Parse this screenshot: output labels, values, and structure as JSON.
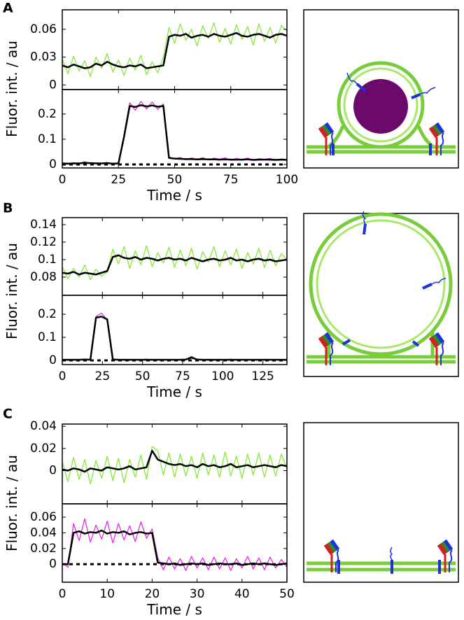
{
  "chart_data": [
    {
      "type": "line",
      "label": "A",
      "ylabel": "Fluor. int. / au",
      "xlabel": "Time / s",
      "xlim": [
        0,
        100
      ],
      "xticks": [
        0,
        25,
        50,
        75,
        100
      ],
      "x": [
        0,
        2.5,
        5,
        7.5,
        10,
        12.5,
        15,
        17.5,
        20,
        22.5,
        25,
        27.5,
        30,
        32.5,
        35,
        37.5,
        40,
        42.5,
        45,
        47.5,
        50,
        52.5,
        55,
        57.5,
        60,
        62.5,
        65,
        67.5,
        70,
        72.5,
        75,
        77.5,
        80,
        82.5,
        85,
        87.5,
        90,
        92.5,
        95,
        97.5,
        100
      ],
      "subplots": [
        {
          "ylim": [
            -0.005,
            0.081
          ],
          "yticks": [
            0,
            0.03,
            0.06
          ],
          "series": [
            {
              "color": "#80e632",
              "values": [
                0.028,
                0.012,
                0.031,
                0.015,
                0.026,
                0.009,
                0.03,
                0.018,
                0.034,
                0.014,
                0.027,
                0.01,
                0.029,
                0.016,
                0.032,
                0.011,
                0.025,
                0.013,
                0.03,
                0.062,
                0.045,
                0.066,
                0.048,
                0.06,
                0.042,
                0.064,
                0.05,
                0.067,
                0.046,
                0.061,
                0.044,
                0.065,
                0.049,
                0.063,
                0.043,
                0.066,
                0.047,
                0.062,
                0.045,
                0.064,
                0.058
              ]
            },
            {
              "color": "#000000",
              "values": [
                0.021,
                0.019,
                0.022,
                0.02,
                0.018,
                0.019,
                0.023,
                0.021,
                0.025,
                0.022,
                0.02,
                0.019,
                0.021,
                0.02,
                0.022,
                0.018,
                0.019,
                0.02,
                0.021,
                0.052,
                0.054,
                0.053,
                0.055,
                0.051,
                0.053,
                0.054,
                0.052,
                0.055,
                0.053,
                0.052,
                0.054,
                0.056,
                0.053,
                0.052,
                0.054,
                0.055,
                0.053,
                0.051,
                0.054,
                0.055,
                0.053
              ]
            }
          ]
        },
        {
          "ylim": [
            -0.014,
            0.297
          ],
          "yticks": [
            0,
            0.1,
            0.2
          ],
          "reference_line": 0,
          "series": [
            {
              "color": "#e020e0",
              "values": [
                0.006,
                0.001,
                0.007,
                0.003,
                0.011,
                0.002,
                0.006,
                0.004,
                0.008,
                0.001,
                0.005,
                0.12,
                0.245,
                0.215,
                0.25,
                0.22,
                0.248,
                0.218,
                0.24,
                0.03,
                0.022,
                0.028,
                0.018,
                0.026,
                0.02,
                0.027,
                0.017,
                0.025,
                0.021,
                0.026,
                0.016,
                0.024,
                0.019,
                0.025,
                0.017,
                0.023,
                0.02,
                0.024,
                0.016,
                0.022,
                0.019
              ]
            },
            {
              "color": "#000000",
              "values": [
                0.004,
                0.003,
                0.004,
                0.004,
                0.006,
                0.005,
                0.004,
                0.004,
                0.005,
                0.003,
                0.004,
                0.11,
                0.232,
                0.228,
                0.235,
                0.23,
                0.234,
                0.229,
                0.232,
                0.026,
                0.023,
                0.022,
                0.021,
                0.021,
                0.02,
                0.021,
                0.02,
                0.02,
                0.019,
                0.02,
                0.019,
                0.019,
                0.019,
                0.02,
                0.018,
                0.019,
                0.019,
                0.019,
                0.018,
                0.019,
                0.018
              ]
            }
          ]
        }
      ]
    },
    {
      "type": "line",
      "label": "B",
      "ylabel": "Fluor. int. / au",
      "xlabel": "Time / s",
      "xlim": [
        0,
        140
      ],
      "xticks": [
        0,
        25,
        50,
        75,
        100,
        125
      ],
      "x": [
        0,
        3.5,
        7,
        10.5,
        14,
        17.5,
        21,
        24.5,
        28,
        31.5,
        35,
        38.5,
        42,
        45.5,
        49,
        52.5,
        56,
        59.5,
        63,
        66.5,
        70,
        73.5,
        77,
        80.5,
        84,
        87.5,
        91,
        94.5,
        98,
        101.5,
        105,
        108.5,
        112,
        115.5,
        119,
        122.5,
        126,
        129.5,
        133,
        136.5,
        140
      ],
      "subplots": [
        {
          "ylim": [
            0.0592,
            0.148
          ],
          "yticks": [
            0.08,
            0.1,
            0.12,
            0.14
          ],
          "series": [
            {
              "color": "#80e632",
              "values": [
                0.092,
                0.078,
                0.09,
                0.08,
                0.094,
                0.077,
                0.089,
                0.081,
                0.086,
                0.112,
                0.095,
                0.115,
                0.09,
                0.11,
                0.094,
                0.116,
                0.092,
                0.108,
                0.096,
                0.114,
                0.091,
                0.111,
                0.093,
                0.113,
                0.089,
                0.109,
                0.097,
                0.115,
                0.092,
                0.11,
                0.094,
                0.112,
                0.09,
                0.108,
                0.095,
                0.113,
                0.091,
                0.111,
                0.093,
                0.107,
                0.1
              ]
            },
            {
              "color": "#000000",
              "values": [
                0.085,
                0.084,
                0.086,
                0.083,
                0.085,
                0.084,
                0.083,
                0.085,
                0.087,
                0.103,
                0.105,
                0.102,
                0.101,
                0.103,
                0.1,
                0.102,
                0.101,
                0.099,
                0.101,
                0.102,
                0.1,
                0.101,
                0.099,
                0.102,
                0.1,
                0.098,
                0.1,
                0.101,
                0.099,
                0.1,
                0.102,
                0.099,
                0.1,
                0.098,
                0.1,
                0.101,
                0.099,
                0.1,
                0.098,
                0.099,
                0.1
              ]
            }
          ]
        },
        {
          "ylim": [
            -0.018,
            0.282
          ],
          "yticks": [
            0,
            0.1,
            0.2
          ],
          "reference_line": 0,
          "series": [
            {
              "color": "#e020e0",
              "values": [
                0.004,
                0.001,
                0.005,
                0.002,
                0.006,
                0.003,
                0.19,
                0.205,
                0.175,
                0.006,
                0.002,
                0.005,
                0.001,
                0.004,
                0.003,
                0.006,
                0.002,
                0.005,
                0.001,
                0.004,
                0.003,
                0.005,
                0.002,
                0.018,
                0.004,
                0.002,
                0.005,
                0.001,
                0.004,
                0.003,
                0.006,
                0.002,
                0.005,
                0.001,
                0.004,
                0.003,
                0.005,
                0.002,
                0.004,
                0.001,
                0.003
              ]
            },
            {
              "color": "#000000",
              "values": [
                0.003,
                0.003,
                0.003,
                0.003,
                0.004,
                0.003,
                0.185,
                0.19,
                0.178,
                0.004,
                0.003,
                0.003,
                0.003,
                0.003,
                0.003,
                0.003,
                0.003,
                0.003,
                0.003,
                0.003,
                0.003,
                0.003,
                0.004,
                0.012,
                0.004,
                0.003,
                0.003,
                0.003,
                0.003,
                0.003,
                0.003,
                0.003,
                0.003,
                0.003,
                0.003,
                0.003,
                0.003,
                0.003,
                0.003,
                0.003,
                0.003
              ]
            }
          ]
        }
      ]
    },
    {
      "type": "line",
      "label": "C",
      "ylabel": "Fluor. int. / au",
      "xlabel": "Time / s",
      "xlim": [
        0,
        50
      ],
      "xticks": [
        0,
        10,
        20,
        30,
        40,
        50
      ],
      "x": [
        0,
        1.25,
        2.5,
        3.75,
        5,
        6.25,
        7.5,
        8.75,
        10,
        11.25,
        12.5,
        13.75,
        15,
        16.25,
        17.5,
        18.75,
        20,
        21.25,
        22.5,
        23.75,
        25,
        26.25,
        27.5,
        28.75,
        30,
        31.25,
        32.5,
        33.75,
        35,
        36.25,
        37.5,
        38.75,
        40,
        41.25,
        42.5,
        43.75,
        45,
        46.25,
        47.5,
        48.75,
        50
      ],
      "subplots": [
        {
          "ylim": [
            -0.03,
            0.042
          ],
          "yticks": [
            0,
            0.02,
            0.04
          ],
          "series": [
            {
              "color": "#80e632",
              "values": [
                0.008,
                -0.01,
                0.012,
                -0.008,
                0.01,
                -0.012,
                0.009,
                -0.007,
                0.013,
                -0.009,
                0.011,
                -0.011,
                0.01,
                -0.006,
                0.014,
                -0.008,
                0.022,
                0.018,
                -0.004,
                0.016,
                -0.006,
                0.015,
                -0.005,
                0.013,
                -0.007,
                0.016,
                -0.004,
                0.014,
                -0.006,
                0.017,
                -0.005,
                0.013,
                -0.007,
                0.015,
                -0.004,
                0.016,
                -0.006,
                0.014,
                -0.005,
                0.015,
                0.002
              ]
            },
            {
              "color": "#000000",
              "values": [
                0.001,
                0.0,
                0.002,
                0.001,
                -0.001,
                0.002,
                0.001,
                0.0,
                0.003,
                0.002,
                0.001,
                0.002,
                0.004,
                0.001,
                0.002,
                0.003,
                0.018,
                0.01,
                0.008,
                0.006,
                0.005,
                0.006,
                0.004,
                0.005,
                0.003,
                0.006,
                0.004,
                0.005,
                0.003,
                0.004,
                0.006,
                0.003,
                0.004,
                0.005,
                0.003,
                0.004,
                0.005,
                0.004,
                0.003,
                0.005,
                0.004
              ]
            }
          ]
        },
        {
          "ylim": [
            -0.023,
            0.077
          ],
          "yticks": [
            0,
            0.02,
            0.04,
            0.06
          ],
          "reference_line": 0,
          "series": [
            {
              "color": "#e020e0",
              "values": [
                0.002,
                -0.004,
                0.052,
                0.03,
                0.058,
                0.028,
                0.05,
                0.032,
                0.055,
                0.027,
                0.052,
                0.031,
                0.049,
                0.029,
                0.054,
                0.033,
                0.045,
                0.008,
                -0.007,
                0.009,
                -0.006,
                0.007,
                -0.008,
                0.01,
                -0.005,
                0.008,
                -0.007,
                0.009,
                -0.006,
                0.008,
                -0.008,
                0.007,
                -0.005,
                0.01,
                -0.006,
                0.008,
                -0.007,
                0.009,
                -0.005,
                0.006,
                -0.004
              ]
            },
            {
              "color": "#000000",
              "values": [
                0.0,
                0.0,
                0.04,
                0.042,
                0.039,
                0.041,
                0.04,
                0.043,
                0.039,
                0.041,
                0.04,
                0.042,
                0.038,
                0.04,
                0.041,
                0.039,
                0.04,
                0.002,
                0.001,
                0.0,
                0.001,
                -0.001,
                0.0,
                0.001,
                0.0,
                0.001,
                -0.001,
                0.0,
                0.001,
                0.0,
                0.0,
                0.001,
                -0.001,
                0.0,
                0.001,
                0.0,
                0.001,
                0.0,
                -0.001,
                0.0,
                0.001
              ]
            }
          ]
        }
      ]
    }
  ]
}
